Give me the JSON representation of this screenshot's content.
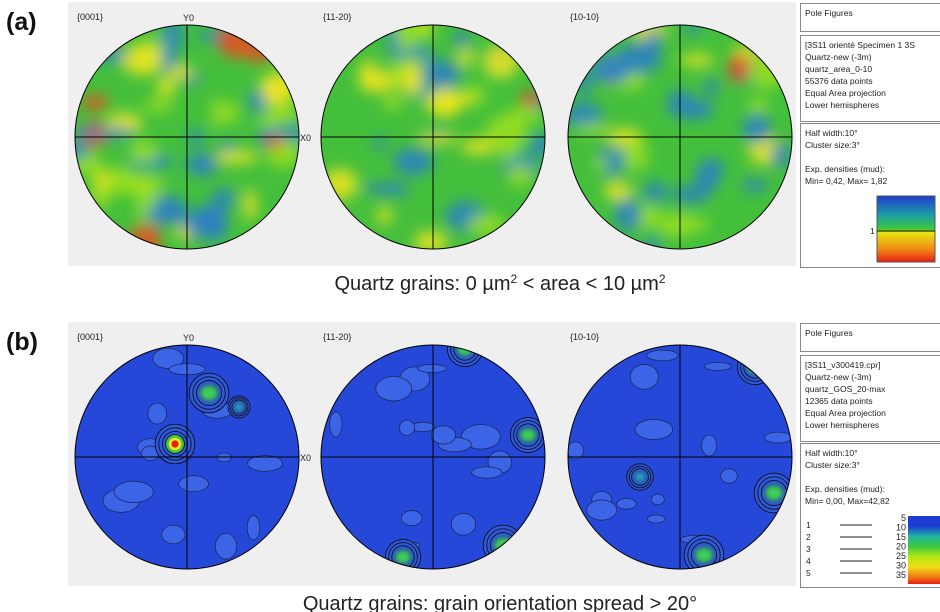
{
  "panels": [
    {
      "label": "(a)",
      "pole_figures": [
        "{0001}",
        "{11-20}",
        "{10-10}"
      ],
      "axis_labels": {
        "y": "Y0",
        "x": "X0"
      },
      "info_title": "Pole Figures",
      "info_lines": [
        "[3S11 orienté Specimen 1 3S",
        "Quartz-new (-3m)",
        "quartz_area_0-10",
        "55376 data points",
        "Equal Area projection",
        "Lower hemispheres"
      ],
      "params": [
        "Half width:10°",
        "Cluster size:3°"
      ],
      "densities": [
        "Exp. densities (mud):",
        "Min= 0,42, Max= 1,82"
      ],
      "colorbar_labels": [
        "1"
      ],
      "caption": [
        "Quartz grains: 0 µm",
        "2",
        " < area < 10 µm",
        "2"
      ]
    },
    {
      "label": "(b)",
      "pole_figures": [
        "{0001}",
        "{11-20}",
        "{10-10}"
      ],
      "axis_labels": {
        "y": "Y0",
        "x": "X0"
      },
      "info_title": "Pole Figures",
      "info_lines": [
        "[3S11_v300419.cpr]",
        "Quartz-new (-3m)",
        "quartz_GOS_20-max",
        "12365 data points",
        "Equal Area projection",
        "Lower hemispheres"
      ],
      "params": [
        "Half width:10°",
        "Cluster size:3°"
      ],
      "densities": [
        "Exp. densities (mud):",
        "Min= 0,00, Max=42,82"
      ],
      "contour_levels": [
        "1",
        "2",
        "3",
        "4",
        "5"
      ],
      "colorbar_labels": [
        5,
        10,
        15,
        20,
        25,
        30,
        35
      ],
      "caption": [
        "Quartz grains: grain orientation spread > 20°"
      ]
    }
  ]
}
